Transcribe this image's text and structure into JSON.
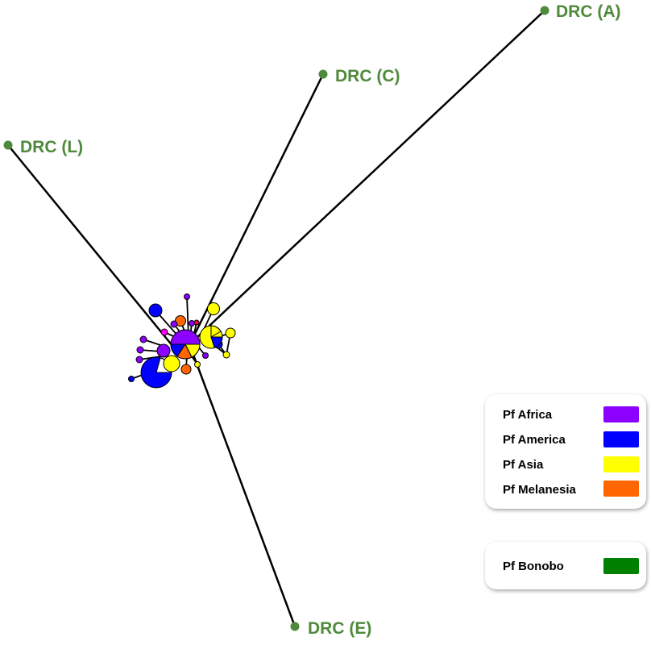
{
  "nodes": {
    "drc_a": {
      "label": "DRC (A)"
    },
    "drc_c": {
      "label": "DRC (C)"
    },
    "drc_l": {
      "label": "DRC (L)"
    },
    "drc_e": {
      "label": "DRC (E)"
    }
  },
  "colors": {
    "africa": "#8b00ff",
    "america": "#0000ff",
    "asia": "#ffff00",
    "melanesia": "#ff6600",
    "bonobo": "#008000",
    "drc_node": "#4f8a3c",
    "edge": "#000000"
  },
  "legend": {
    "groups": [
      {
        "label": "Pf Africa",
        "color": "#8b00ff"
      },
      {
        "label": "Pf America",
        "color": "#0000ff"
      },
      {
        "label": "Pf Asia",
        "color": "#ffff00"
      },
      {
        "label": "Pf Melanesia",
        "color": "#ff6600"
      }
    ],
    "bonobo": {
      "label": "Pf Bonobo",
      "color": "#008000"
    }
  }
}
